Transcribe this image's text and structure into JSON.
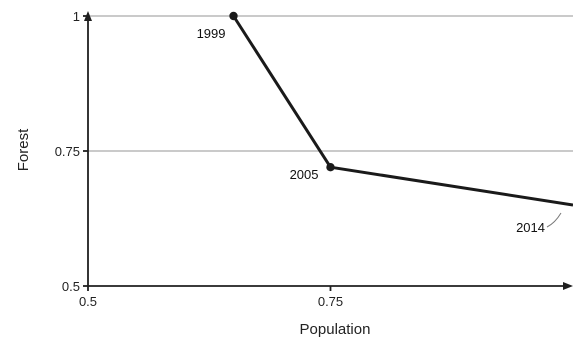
{
  "chart_data": {
    "type": "line",
    "xlabel": "Population",
    "ylabel": "Forest",
    "xlim": [
      0.5,
      1.0
    ],
    "ylim": [
      0.5,
      1.0
    ],
    "x_ticks": [
      {
        "value": 0.5,
        "label": "0.5"
      },
      {
        "value": 0.75,
        "label": "0.75"
      }
    ],
    "y_ticks": [
      {
        "value": 1.0,
        "label": "1"
      },
      {
        "value": 0.75,
        "label": "0.75"
      },
      {
        "value": 0.5,
        "label": "0.5"
      }
    ],
    "gridlines_y": [
      1.0,
      0.75
    ],
    "grid": true,
    "series": [
      {
        "color": "#1a1a1a",
        "points": [
          {
            "x": 0.65,
            "y": 1.0,
            "label": "1999"
          },
          {
            "x": 0.75,
            "y": 0.72,
            "label": "2005"
          },
          {
            "x": 1.0,
            "y": 0.65,
            "label": "2014"
          }
        ]
      }
    ]
  }
}
